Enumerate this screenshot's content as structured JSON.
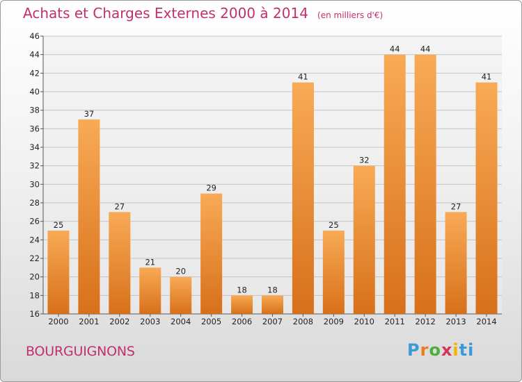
{
  "header": {
    "title": "Achats et Charges Externes 2000 à 2014",
    "subtitle": "(en milliers d'€)"
  },
  "footer": {
    "commune": "BOURGUIGNONS",
    "logo": {
      "parts": [
        "P",
        "r",
        "o",
        "x",
        "i",
        "ti"
      ],
      "alt": "Proxiti"
    }
  },
  "colors": {
    "bar_top": "#f8aa55",
    "bar_bottom": "#d8701a",
    "title": "#c0306c"
  },
  "chart_data": {
    "type": "bar",
    "title": "Achats et Charges Externes 2000 à 2014",
    "subtitle": "(en milliers d'€)",
    "categories": [
      "2000",
      "2001",
      "2002",
      "2003",
      "2004",
      "2005",
      "2006",
      "2007",
      "2008",
      "2009",
      "2010",
      "2011",
      "2012",
      "2013",
      "2014"
    ],
    "values": [
      25,
      37,
      27,
      21,
      20,
      29,
      18,
      18,
      41,
      25,
      32,
      44,
      44,
      27,
      41
    ],
    "ylim": [
      16,
      46
    ],
    "yticks": [
      16,
      18,
      20,
      22,
      24,
      26,
      28,
      30,
      32,
      34,
      36,
      38,
      40,
      42,
      44,
      46
    ],
    "grid": true,
    "data_labels": true
  }
}
